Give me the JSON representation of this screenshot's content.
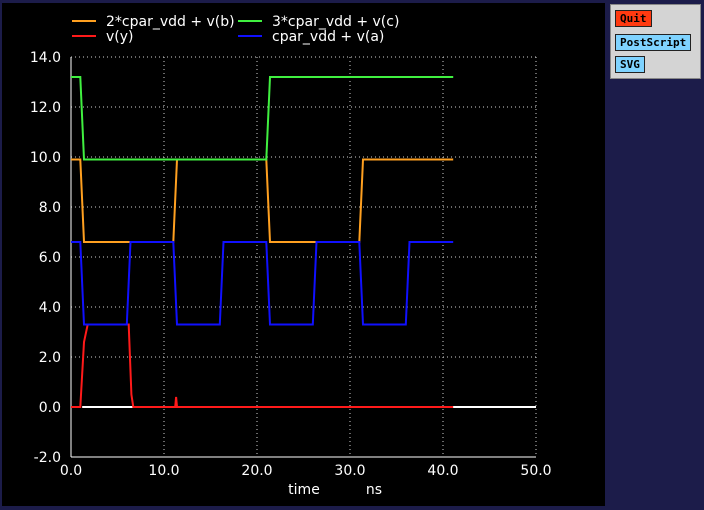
{
  "buttons": {
    "quit": "Quit",
    "postscript": "PostScript",
    "svg": "SVG"
  },
  "chart_data": {
    "type": "line",
    "title": "",
    "xlabel": "time",
    "xunit": "ns",
    "ylabel": "",
    "xlim": [
      0,
      50
    ],
    "ylim": [
      -2,
      14
    ],
    "xticks": [
      "0.0",
      "10.0",
      "20.0",
      "30.0",
      "40.0",
      "50.0"
    ],
    "yticks": [
      "-2.0",
      "0.0",
      "2.0",
      "4.0",
      "6.0",
      "8.0",
      "10.0",
      "12.0",
      "14.0"
    ],
    "grid": true,
    "legend_position": "top",
    "series": [
      {
        "name": "2*cpar_vdd + v(b)",
        "color": "#ffa020",
        "x": [
          0,
          1.0,
          1.4,
          11.0,
          11.4,
          21.0,
          21.4,
          31.0,
          31.4,
          41.1
        ],
        "y": [
          9.9,
          9.9,
          6.6,
          6.6,
          9.9,
          9.9,
          6.6,
          6.6,
          9.9,
          9.9
        ]
      },
      {
        "name": "v(y)",
        "color": "#ff1a1a",
        "x": [
          0,
          1.0,
          1.4,
          1.8,
          6.2,
          6.5,
          6.7,
          11.2,
          11.3,
          11.4,
          41.1
        ],
        "y": [
          0,
          0,
          2.6,
          3.3,
          3.3,
          0.5,
          0,
          0,
          0.4,
          0,
          0
        ]
      },
      {
        "name": "3*cpar_vdd + v(c)",
        "color": "#40f040",
        "x": [
          0,
          1.0,
          1.4,
          21.0,
          21.4,
          41.1
        ],
        "y": [
          13.2,
          13.2,
          9.9,
          9.9,
          13.2,
          13.2
        ]
      },
      {
        "name": "cpar_vdd + v(a)",
        "color": "#1010ff",
        "x": [
          0,
          1.0,
          1.4,
          6.0,
          6.4,
          11.0,
          11.4,
          16.0,
          16.4,
          21.0,
          21.4,
          26.0,
          26.4,
          31.0,
          31.4,
          36.0,
          36.4,
          41.1
        ],
        "y": [
          6.6,
          6.6,
          3.3,
          3.3,
          6.6,
          6.6,
          3.3,
          3.3,
          6.6,
          6.6,
          3.3,
          3.3,
          6.6,
          6.6,
          3.3,
          3.3,
          6.6,
          6.6
        ]
      }
    ],
    "baseline": {
      "color": "#ffffff",
      "x": [
        1.2,
        50
      ],
      "y": [
        0,
        0
      ]
    }
  }
}
